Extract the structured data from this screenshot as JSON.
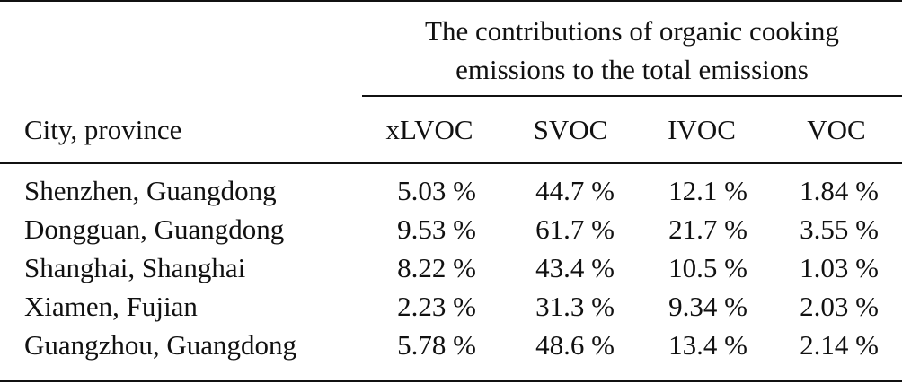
{
  "table": {
    "group_header": {
      "line1": "The contributions of organic cooking",
      "line2": "emissions to the total emissions"
    },
    "row_header": "City, province",
    "columns": [
      "xLVOC",
      "SVOC",
      "IVOC",
      "VOC"
    ],
    "rows": [
      {
        "city": "Shenzhen, Guangdong",
        "values": [
          "5.03 %",
          "44.7 %",
          "12.1 %",
          "1.84 %"
        ]
      },
      {
        "city": "Dongguan, Guangdong",
        "values": [
          "9.53 %",
          "61.7 %",
          "21.7 %",
          "3.55 %"
        ]
      },
      {
        "city": "Shanghai, Shanghai",
        "values": [
          "8.22 %",
          "43.4 %",
          "10.5 %",
          "1.03 %"
        ]
      },
      {
        "city": "Xiamen, Fujian",
        "values": [
          "2.23 %",
          "31.3 %",
          "9.34 %",
          "2.03 %"
        ]
      },
      {
        "city": "Guangzhou, Guangdong",
        "values": [
          "5.78 %",
          "48.6 %",
          "13.4 %",
          "2.14 %"
        ]
      }
    ]
  }
}
